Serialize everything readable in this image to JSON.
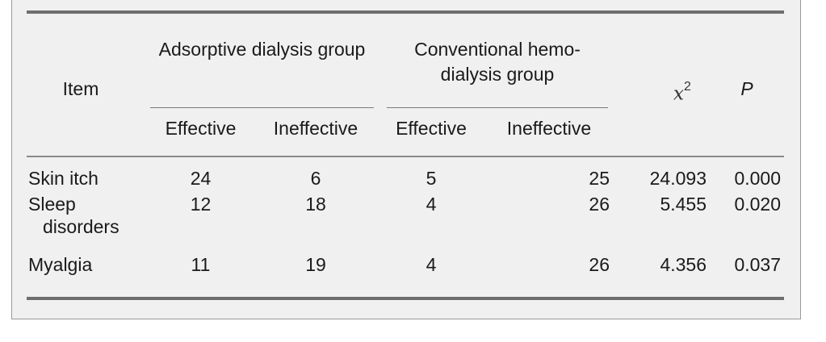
{
  "table": {
    "header": {
      "item": "Item",
      "group_a": "Adsorptive dialysis group",
      "group_b": "Conventional hemo-dialysis group",
      "chi_symbol": "x",
      "chi_power": "2",
      "p": "P",
      "sub": [
        "Effective",
        "Ineffective",
        "Effective",
        "Ineffective"
      ]
    },
    "rows": [
      {
        "item": "Skin itch",
        "item_cont": "",
        "ads_eff": "24",
        "ads_ineff": "6",
        "conv_eff": "5",
        "conv_ineff": "25",
        "chi2": "24.093",
        "p": "0.000"
      },
      {
        "item": "Sleep",
        "item_cont": "disorders",
        "ads_eff": "12",
        "ads_ineff": "18",
        "conv_eff": "4",
        "conv_ineff": "26",
        "chi2": "5.455",
        "p": "0.020"
      },
      {
        "item": "Myalgia",
        "item_cont": "",
        "ads_eff": "11",
        "ads_ineff": "19",
        "conv_eff": "4",
        "conv_ineff": "26",
        "chi2": "4.356",
        "p": "0.037"
      }
    ]
  }
}
